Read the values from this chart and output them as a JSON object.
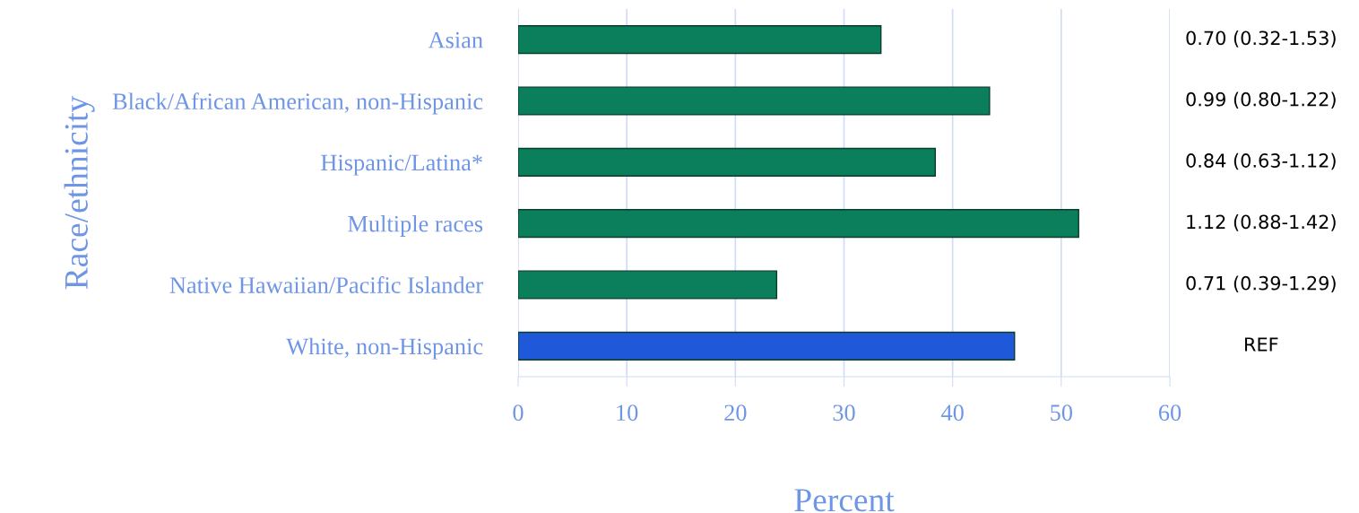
{
  "chart_data": {
    "type": "bar",
    "orientation": "horizontal",
    "xlabel": "Percent",
    "ylabel": "Race/ethnicity",
    "categories": [
      "Asian",
      "Black/African American, non-Hispanic",
      "Hispanic/Latina*",
      "Multiple races",
      "Native Hawaiian/Pacific Islander",
      "White, non-Hispanic"
    ],
    "values": [
      33.4,
      43.4,
      38.4,
      51.6,
      23.8,
      45.7
    ],
    "colors": [
      "#0b7f5c",
      "#0b7f5c",
      "#0b7f5c",
      "#0b7f5c",
      "#0b7f5c",
      "#1f58d8"
    ],
    "xlim": [
      0,
      60
    ],
    "xticks": [
      0,
      10,
      20,
      30,
      40,
      50,
      60
    ],
    "grid": "x",
    "annotations": [
      "0.70 (0.32-1.53)",
      "0.99 (0.80-1.22)",
      "0.84 (0.63-1.12)",
      "1.12 (0.88-1.42)",
      "0.71 (0.39-1.29)",
      "REF"
    ]
  }
}
